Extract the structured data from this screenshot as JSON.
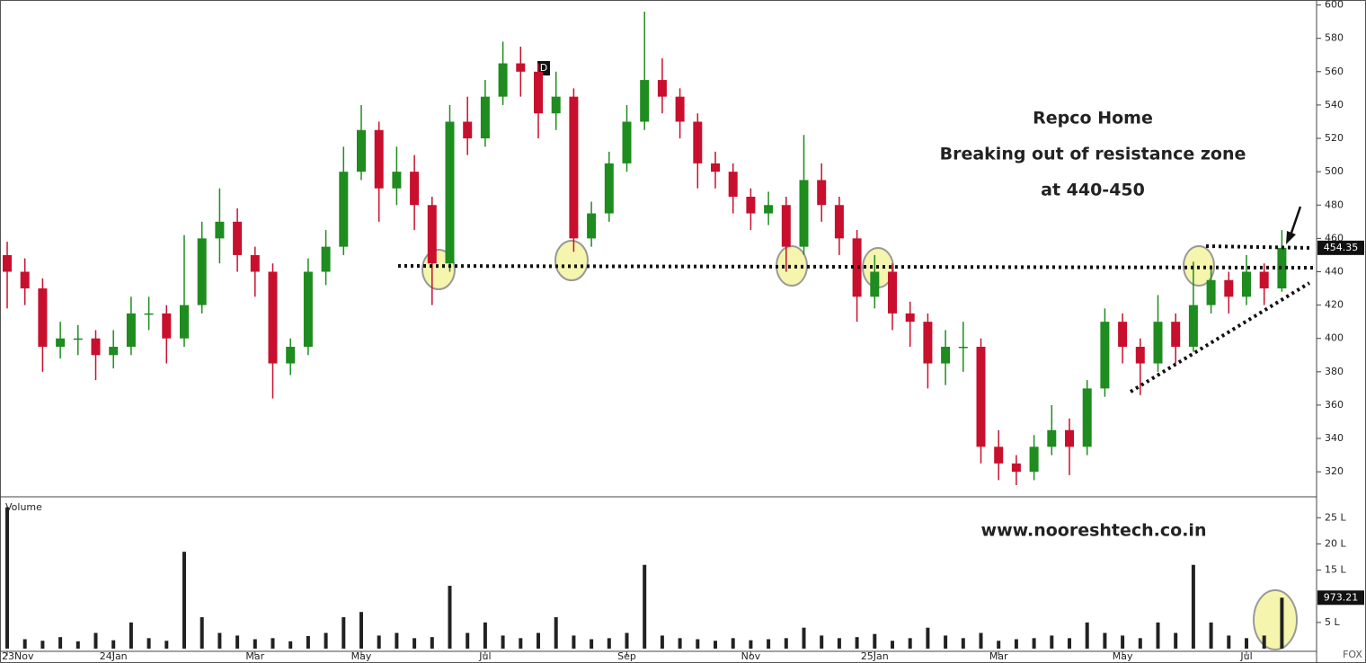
{
  "chart_data": {
    "type": "candlestick",
    "title": "Repco Home",
    "subtitle": "Breaking out of resistance zone",
    "annotation": "at 440-450",
    "watermark": "www.nooreshtech.co.in",
    "volume_label": "Volume",
    "corner_label": "FOX",
    "marker_label": "D",
    "categories": [
      "23Nov",
      null,
      null,
      null,
      null,
      null,
      "24Jan",
      null,
      null,
      null,
      null,
      null,
      null,
      null,
      "Mar",
      null,
      null,
      null,
      null,
      null,
      "May",
      null,
      null,
      null,
      null,
      null,
      null,
      "Jul",
      null,
      null,
      null,
      null,
      null,
      null,
      null,
      "Sep",
      null,
      null,
      null,
      null,
      null,
      null,
      "Nov",
      null,
      null,
      null,
      null,
      null,
      null,
      "25Jan",
      null,
      null,
      null,
      null,
      null,
      null,
      "Mar",
      null,
      null,
      null,
      null,
      null,
      null,
      "May",
      null,
      null,
      null,
      null,
      null,
      null,
      "Jul",
      null,
      null
    ],
    "open": [
      450,
      440,
      430,
      395,
      400,
      400,
      390,
      395,
      415,
      415,
      400,
      420,
      460,
      470,
      450,
      440,
      385,
      395,
      440,
      455,
      500,
      525,
      490,
      500,
      480,
      445,
      530,
      520,
      545,
      565,
      560,
      535,
      545,
      460,
      475,
      505,
      530,
      555,
      545,
      530,
      505,
      500,
      485,
      475,
      480,
      455,
      495,
      480,
      460,
      425,
      440,
      415,
      410,
      385,
      395,
      395,
      335,
      325,
      320,
      335,
      345,
      335,
      370,
      410,
      395,
      385,
      410,
      395,
      420,
      435,
      425,
      440,
      430
    ],
    "high": [
      458,
      448,
      436,
      410,
      408,
      405,
      405,
      425,
      425,
      420,
      462,
      470,
      490,
      478,
      455,
      445,
      400,
      448,
      465,
      515,
      540,
      530,
      515,
      510,
      485,
      540,
      545,
      555,
      578,
      575,
      565,
      560,
      550,
      482,
      512,
      540,
      596,
      568,
      550,
      535,
      512,
      505,
      490,
      488,
      485,
      522,
      505,
      485,
      465,
      450,
      445,
      422,
      415,
      405,
      410,
      400,
      345,
      330,
      342,
      360,
      352,
      375,
      418,
      415,
      400,
      426,
      415,
      446,
      444,
      440,
      450,
      445,
      465
    ],
    "low": [
      418,
      420,
      380,
      388,
      390,
      375,
      382,
      390,
      405,
      385,
      395,
      415,
      445,
      440,
      425,
      364,
      378,
      390,
      432,
      450,
      495,
      470,
      480,
      465,
      420,
      440,
      510,
      515,
      540,
      545,
      520,
      525,
      452,
      455,
      470,
      500,
      525,
      535,
      520,
      490,
      490,
      475,
      465,
      468,
      440,
      450,
      470,
      450,
      410,
      418,
      405,
      395,
      370,
      372,
      380,
      325,
      315,
      312,
      315,
      330,
      318,
      330,
      365,
      385,
      366,
      380,
      385,
      392,
      415,
      415,
      420,
      420,
      428
    ],
    "close": [
      440,
      430,
      395,
      400,
      400,
      390,
      395,
      415,
      415,
      400,
      420,
      460,
      470,
      450,
      440,
      385,
      395,
      440,
      455,
      500,
      525,
      490,
      500,
      480,
      445,
      530,
      520,
      545,
      565,
      560,
      535,
      545,
      460,
      475,
      505,
      530,
      555,
      545,
      530,
      505,
      500,
      485,
      475,
      480,
      455,
      495,
      480,
      460,
      425,
      440,
      415,
      410,
      385,
      395,
      395,
      335,
      325,
      320,
      335,
      345,
      335,
      370,
      410,
      395,
      385,
      410,
      395,
      420,
      435,
      425,
      440,
      430,
      454.35
    ],
    "volume": [
      27,
      1.8,
      1.5,
      2.2,
      1.4,
      3,
      1.6,
      5,
      2,
      1.5,
      18.5,
      6,
      3,
      2.5,
      1.8,
      2,
      1.4,
      2.4,
      3,
      6,
      7,
      2.5,
      3,
      2,
      2.2,
      12,
      3,
      5,
      2.5,
      2,
      3,
      6,
      2.5,
      1.8,
      2,
      3,
      16,
      2.5,
      2,
      1.8,
      1.5,
      2,
      1.6,
      1.8,
      2,
      4,
      2.5,
      2,
      2.2,
      2.8,
      1.5,
      2,
      4,
      2.5,
      2,
      3,
      1.5,
      1.8,
      2,
      2.5,
      2,
      5,
      3,
      2.5,
      2,
      5,
      3,
      16,
      5,
      2.5,
      2,
      2.5,
      9.7321
    ],
    "last_volume": {
      "value": 9.7321,
      "label": "973.21"
    },
    "up_color": "#1e8c1e",
    "down_color": "#c8102e",
    "volume_color": "#222222",
    "ylim": [
      305,
      603
    ],
    "yticks": [
      320,
      340,
      360,
      380,
      400,
      420,
      440,
      460,
      480,
      500,
      520,
      540,
      560,
      580,
      600
    ],
    "volume_ylim": [
      0,
      29
    ],
    "volume_yticks": [
      {
        "value": 5,
        "label": "5 L"
      },
      {
        "value": 15,
        "label": "15 L"
      },
      {
        "value": 20,
        "label": "20 L"
      },
      {
        "value": 25,
        "label": "25 L"
      }
    ]
  }
}
